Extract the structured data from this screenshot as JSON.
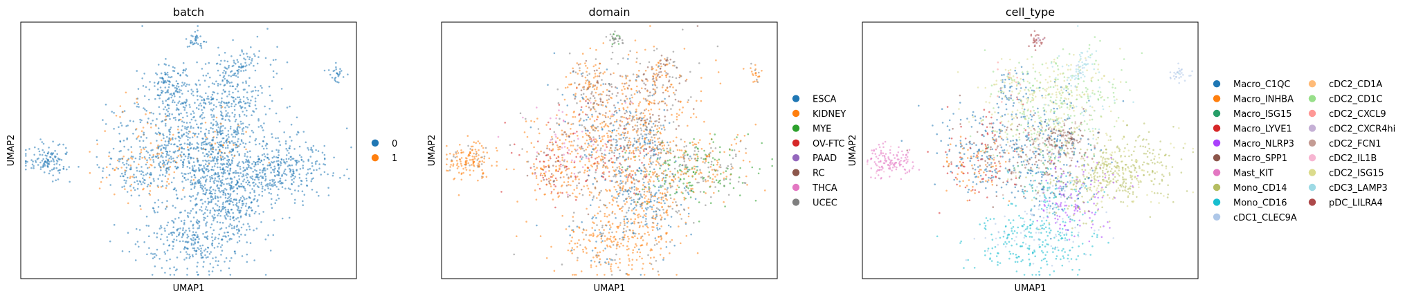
{
  "chart_data": [
    {
      "type": "scatter",
      "title": "batch",
      "xlabel": "UMAP1",
      "ylabel": "UMAP2",
      "grid": false,
      "legend_position": "right",
      "legend_columns": 1,
      "series": [
        {
          "name": "0",
          "color": "#1f77b4"
        },
        {
          "name": "1",
          "color": "#ff7f0e"
        }
      ]
    },
    {
      "type": "scatter",
      "title": "domain",
      "xlabel": "UMAP1",
      "ylabel": "UMAP2",
      "grid": false,
      "legend_position": "right",
      "legend_columns": 1,
      "series": [
        {
          "name": "ESCA",
          "color": "#1f77b4"
        },
        {
          "name": "KIDNEY",
          "color": "#ff7f0e"
        },
        {
          "name": "MYE",
          "color": "#2ca02c"
        },
        {
          "name": "OV-FTC",
          "color": "#d62728"
        },
        {
          "name": "PAAD",
          "color": "#9467bd"
        },
        {
          "name": "RC",
          "color": "#8c564b"
        },
        {
          "name": "THCA",
          "color": "#e377c2"
        },
        {
          "name": "UCEC",
          "color": "#7f7f7f"
        }
      ]
    },
    {
      "type": "scatter",
      "title": "cell_type",
      "xlabel": "UMAP1",
      "ylabel": "UMAP2",
      "grid": false,
      "legend_position": "right",
      "legend_columns": 2,
      "series": [
        {
          "name": "Macro_C1QC",
          "color": "#1f77b4"
        },
        {
          "name": "Macro_INHBA",
          "color": "#ff7f0e"
        },
        {
          "name": "Macro_ISG15",
          "color": "#279e68"
        },
        {
          "name": "Macro_LYVE1",
          "color": "#d62728"
        },
        {
          "name": "Macro_NLRP3",
          "color": "#aa40fc"
        },
        {
          "name": "Macro_SPP1",
          "color": "#8c564b"
        },
        {
          "name": "Mast_KIT",
          "color": "#e377c2"
        },
        {
          "name": "Mono_CD14",
          "color": "#b5bd61"
        },
        {
          "name": "Mono_CD16",
          "color": "#17becf"
        },
        {
          "name": "cDC1_CLEC9A",
          "color": "#aec7e8"
        },
        {
          "name": "cDC2_CD1A",
          "color": "#ffbb78"
        },
        {
          "name": "cDC2_CD1C",
          "color": "#98df8a"
        },
        {
          "name": "cDC2_CXCL9",
          "color": "#ff9896"
        },
        {
          "name": "cDC2_CXCR4hi",
          "color": "#c5b0d5"
        },
        {
          "name": "cDC2_FCN1",
          "color": "#c49c94"
        },
        {
          "name": "cDC2_IL1B",
          "color": "#f7b6d2"
        },
        {
          "name": "cDC2_ISG15",
          "color": "#dbdb8d"
        },
        {
          "name": "cDC3_LAMP3",
          "color": "#9edae5"
        },
        {
          "name": "pDC_LILRA4",
          "color": "#ad494a"
        }
      ]
    }
  ]
}
